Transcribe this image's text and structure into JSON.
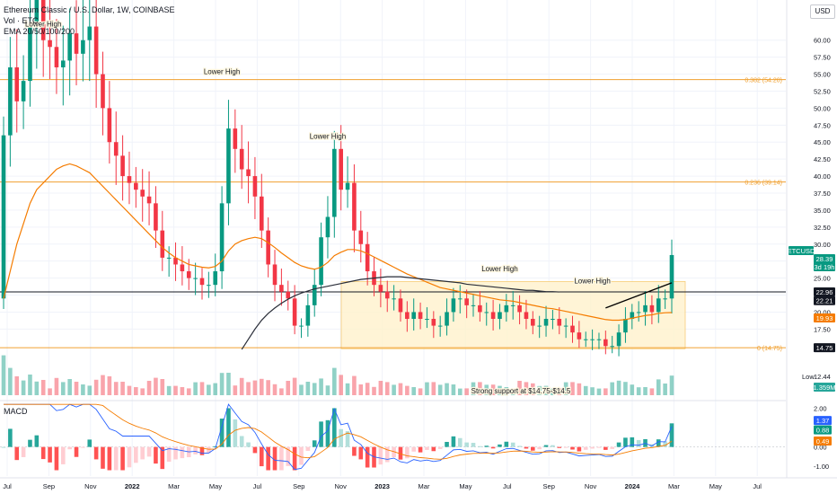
{
  "legend": {
    "line1": "Ethereum Classic / U.S. Dollar, 1W, COINBASE",
    "line2": "Vol · ETC",
    "line3": "EMA 20/50/100/200"
  },
  "currency": "USD",
  "macd_label": "MACD",
  "chart_data": {
    "type": "candlestick",
    "symbol": "ETCUSD",
    "interval": "1W",
    "x_ticks": [
      "Jul",
      "Sep",
      "Nov",
      "2022",
      "Mar",
      "May",
      "Jul",
      "Sep",
      "Nov",
      "2023",
      "Mar",
      "May",
      "Jul",
      "Sep",
      "Nov",
      "2024",
      "Mar",
      "May",
      "Jul"
    ],
    "y_ticks": [
      17.5,
      20.0,
      22.5,
      25.0,
      27.5,
      30.0,
      32.5,
      35.0,
      37.5,
      40.0,
      42.5,
      45.0,
      47.5,
      50.0,
      52.5,
      55.0,
      57.5,
      60.0
    ],
    "y_ticks_text": [
      "17.50",
      "20.00",
      "22.50",
      "25.00",
      "27.50",
      "30.00",
      "32.50",
      "35.00",
      "37.50",
      "40.00",
      "42.50",
      "45.00",
      "47.50",
      "50.00",
      "52.50",
      "55.00",
      "57.50",
      "60.00"
    ],
    "price_range": [
      12.0,
      63.0
    ],
    "closes": [
      46,
      56,
      51,
      54,
      62,
      66,
      60,
      59,
      56,
      57,
      61,
      58,
      60,
      62,
      55,
      50,
      45,
      43,
      40,
      39,
      38,
      37,
      36,
      32,
      28,
      28,
      27,
      26,
      25,
      25,
      24,
      24,
      26,
      36,
      47,
      44,
      41,
      40,
      37,
      32,
      27,
      24,
      23,
      22,
      18,
      18,
      21,
      24,
      31,
      34,
      44,
      38,
      39,
      32,
      30,
      26,
      24,
      23,
      22,
      22,
      20,
      19,
      20,
      19,
      19,
      18,
      18,
      20,
      22,
      22,
      21,
      21,
      20,
      20,
      19,
      20,
      21,
      21,
      20,
      19,
      18,
      18,
      19,
      19,
      18,
      18,
      17,
      16,
      16,
      16,
      16,
      15,
      15,
      17,
      19,
      20,
      20,
      21,
      20,
      22,
      22,
      28.39
    ],
    "ema_orange": [
      22,
      26,
      30,
      33,
      36,
      38,
      39,
      40,
      41,
      41.5,
      41.8,
      41.5,
      41,
      40.5,
      39.5,
      38.5,
      37.5,
      36.5,
      35.5,
      34.5,
      33.5,
      32.5,
      31.5,
      30.5,
      29.5,
      28.7,
      28,
      27.5,
      27,
      26.8,
      26.6,
      26.5,
      26.7,
      27.5,
      29,
      30,
      30.5,
      30.8,
      31,
      30.8,
      30.2,
      29.5,
      28.7,
      28,
      27.3,
      26.8,
      26.5,
      26.3,
      26.6,
      27.3,
      28.3,
      28.8,
      29.2,
      29.2,
      29,
      28.6,
      28.1,
      27.6,
      27.1,
      26.6,
      26.1,
      25.6,
      25.2,
      24.8,
      24.4,
      24,
      23.6,
      23.4,
      23.2,
      23,
      22.8,
      22.6,
      22.4,
      22.2,
      22,
      21.8,
      21.7,
      21.6,
      21.4,
      21.2,
      21,
      20.8,
      20.6,
      20.5,
      20.3,
      20.1,
      19.9,
      19.7,
      19.5,
      19.3,
      19.1,
      18.9,
      18.8,
      18.8,
      18.9,
      19.1,
      19.3,
      19.5,
      19.6,
      19.8,
      19.9,
      19.93
    ],
    "ema_black_start": 36,
    "ema_black": [
      14.5,
      16,
      17.5,
      18.8,
      19.8,
      20.6,
      21.3,
      21.9,
      22.4,
      22.8,
      23.1,
      23.4,
      23.6,
      23.8,
      24,
      24.2,
      24.4,
      24.6,
      24.8,
      24.9,
      25,
      25.1,
      25.2,
      25.2,
      25.2,
      25.1,
      25,
      24.9,
      24.8,
      24.7,
      24.6,
      24.5,
      24.4,
      24.3,
      24.1,
      24,
      23.9,
      23.8,
      23.7,
      23.6,
      23.5,
      23.4,
      23.3,
      23.2,
      23.2,
      23.1,
      23,
      23,
      22.96
    ],
    "horizontal_levels": [
      {
        "value": 54.2,
        "label": "0.382 (54.20)",
        "color": "#f0a030"
      },
      {
        "value": 39.14,
        "label": "0.236 (39.14)",
        "color": "#f0a030"
      },
      {
        "value": 14.75,
        "label": "0 (14.75)",
        "color": "#f0a030"
      },
      {
        "value": 22.96,
        "label": "",
        "color": "#131722"
      }
    ],
    "price_tags": [
      {
        "text": "ETCUSD",
        "value": 28.39,
        "bg": "#089981"
      },
      {
        "text": "28.39",
        "value": 28.39,
        "bg": "#089981"
      },
      {
        "text": "3d 19h",
        "value": 28.39,
        "bg": "#089981"
      },
      {
        "text": "22.96",
        "value": 22.96,
        "bg": "#131722"
      },
      {
        "text": "22.21",
        "value": 22.21,
        "bg": "#131722"
      },
      {
        "text": "19.93",
        "value": 19.93,
        "bg": "#f57c00"
      },
      {
        "text": "14.75",
        "value": 14.75,
        "bg": "#131722"
      }
    ],
    "low_tag": {
      "text": "Low",
      "value": "12.44"
    },
    "volume_tag": "1.359M",
    "annotations": [
      {
        "text": "Lower High",
        "bar": 6,
        "price": 62.0
      },
      {
        "text": "Lower High",
        "bar": 33,
        "price": 55.0
      },
      {
        "text": "Lower High",
        "bar": 49,
        "price": 45.5
      },
      {
        "text": "Lower High",
        "bar": 75,
        "price": 26.0
      },
      {
        "text": "Lower High",
        "bar": 89,
        "price": 24.2
      }
    ],
    "support_label": "Strong support at $14.75-$14.5",
    "macd": {
      "ticks": [
        2.0,
        1.0,
        0.0,
        -1.0
      ],
      "ticks_text": [
        "2.00",
        "1.00",
        "0.00",
        "-1.00"
      ],
      "tags": [
        {
          "text": "1.37",
          "value": 1.37,
          "bg": "#2962ff"
        },
        {
          "text": "0.88",
          "value": 0.88,
          "bg": "#089981"
        },
        {
          "text": "0.49",
          "value": 0.49,
          "bg": "#f57c00"
        }
      ]
    }
  }
}
